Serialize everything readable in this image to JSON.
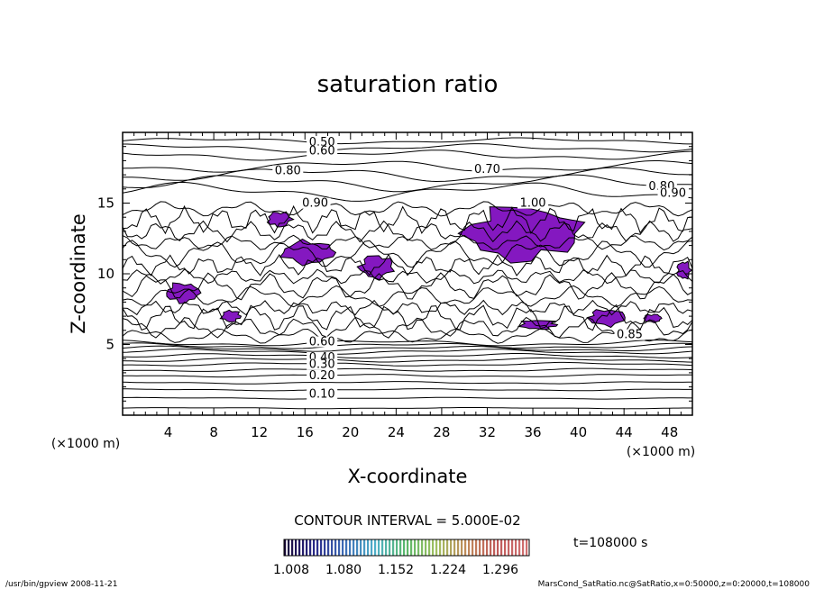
{
  "chart_data": {
    "type": "contour",
    "title": "saturation ratio",
    "xlabel": "X-coordinate",
    "ylabel": "Z-coordinate",
    "x_unit_label": "(×1000 m)",
    "y_unit_label": "(×1000 m)",
    "xlim": [
      0,
      50
    ],
    "ylim": [
      0,
      20
    ],
    "x_ticks": [
      4,
      8,
      12,
      16,
      20,
      24,
      28,
      32,
      36,
      40,
      44,
      48
    ],
    "y_ticks": [
      5,
      10,
      15
    ],
    "contour_interval_label": "CONTOUR INTERVAL = 5.000E-02",
    "time_label": "t=108000 s",
    "contour_labels": [
      {
        "text": "0.50",
        "x": 17.5,
        "z": 19.1
      },
      {
        "text": "0.60",
        "x": 17.5,
        "z": 18.5
      },
      {
        "text": "0.70",
        "x": 32.0,
        "z": 17.2
      },
      {
        "text": "0.80",
        "x": 14.5,
        "z": 17.1
      },
      {
        "text": "0.90",
        "x": 16.9,
        "z": 14.8
      },
      {
        "text": "1.00",
        "x": 36.0,
        "z": 14.8
      },
      {
        "text": "0.80",
        "x": 47.3,
        "z": 16.0
      },
      {
        "text": "0.90",
        "x": 48.3,
        "z": 15.5
      },
      {
        "text": "0.60",
        "x": 17.5,
        "z": 5.0
      },
      {
        "text": "0.40",
        "x": 17.5,
        "z": 3.9
      },
      {
        "text": "0.30",
        "x": 17.5,
        "z": 3.4
      },
      {
        "text": "0.20",
        "x": 17.5,
        "z": 2.6
      },
      {
        "text": "0.10",
        "x": 17.5,
        "z": 1.3
      },
      {
        "text": "0.85",
        "x": 44.5,
        "z": 5.5
      }
    ],
    "shaded_regions": [
      {
        "x": [
          29,
          41
        ],
        "z": [
          10.5,
          15.2
        ]
      },
      {
        "x": [
          13.5,
          19
        ],
        "z": [
          10.5,
          12.5
        ]
      },
      {
        "x": [
          20.5,
          24
        ],
        "z": [
          9.5,
          11.5
        ]
      },
      {
        "x": [
          3.5,
          7
        ],
        "z": [
          7.8,
          9.5
        ]
      },
      {
        "x": [
          8.5,
          10.5
        ],
        "z": [
          6.5,
          7.5
        ]
      },
      {
        "x": [
          40.5,
          44.5
        ],
        "z": [
          6.2,
          7.6
        ]
      },
      {
        "x": [
          12.5,
          15
        ],
        "z": [
          13.2,
          14.5
        ]
      },
      {
        "x": [
          34.5,
          38.5
        ],
        "z": [
          6.0,
          6.8
        ]
      },
      {
        "x": [
          45.5,
          47.5
        ],
        "z": [
          6.5,
          7.2
        ]
      },
      {
        "x": [
          48.5,
          50
        ],
        "z": [
          9.5,
          11.0
        ]
      }
    ],
    "colorbar": {
      "tick_labels": [
        "1.008",
        "1.080",
        "1.152",
        "1.224",
        "1.296"
      ],
      "colors": [
        "#1a0a3a",
        "#2a2a8a",
        "#3f6fb8",
        "#4fb0c8",
        "#5ab86a",
        "#a0c060",
        "#c08a5a",
        "#c05a5a",
        "#d07070"
      ]
    },
    "fill_color": "#8418c0"
  },
  "footer": {
    "left": "/usr/bin/gpview   2008-11-21",
    "right": "MarsCond_SatRatio.nc@SatRatio,x=0:50000,z=0:20000,t=108000"
  }
}
